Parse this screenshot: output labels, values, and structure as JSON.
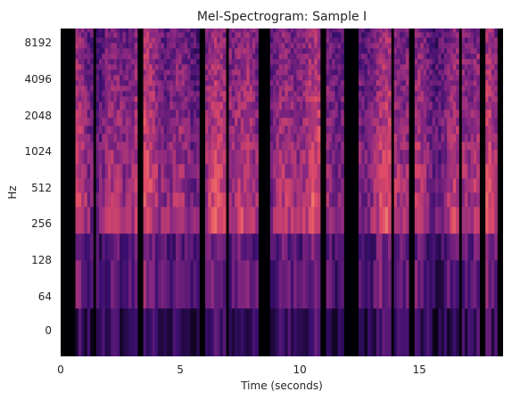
{
  "chart_data": {
    "type": "heatmap",
    "title": "Mel-Spectrogram: Sample I",
    "xlabel": "Time (seconds)",
    "ylabel": "Hz",
    "xlim": [
      0,
      18.5
    ],
    "x_ticks": [
      0,
      5,
      10,
      15
    ],
    "x_tick_labels": [
      "0",
      "5",
      "10",
      "15"
    ],
    "y_scale": "mel",
    "y_tick_labels": [
      "0",
      "64",
      "128",
      "256",
      "512",
      "1024",
      "2048",
      "4096",
      "8192"
    ],
    "colormap": "magma",
    "grid": false,
    "silent_segments_seconds": [
      [
        0,
        0.6
      ],
      [
        1.3,
        1.5
      ],
      [
        3.2,
        3.5
      ],
      [
        5.8,
        6.1
      ],
      [
        6.9,
        7.0
      ],
      [
        8.3,
        8.7
      ],
      [
        10.9,
        11.1
      ],
      [
        11.9,
        12.4
      ],
      [
        13.8,
        13.9
      ],
      [
        14.6,
        14.8
      ],
      [
        16.6,
        16.8
      ],
      [
        17.5,
        17.7
      ],
      [
        18.3,
        18.5
      ]
    ],
    "bright_band_hz": [
      256,
      1024
    ]
  },
  "colors": {
    "background": "#ffffff",
    "axis_text": "#262626",
    "silence": "#000004",
    "colormap_stops": [
      "#000004",
      "#3b0f70",
      "#8c2981",
      "#de4968",
      "#fe9f6d",
      "#fcfdbf"
    ]
  }
}
